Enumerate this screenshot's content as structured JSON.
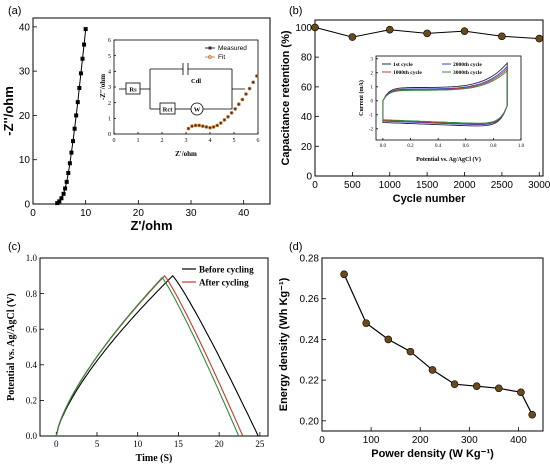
{
  "chart_data": [
    {
      "panel": "(a)",
      "type": "scatter",
      "xlabel": "Z'/ohm",
      "ylabel": "-Z''/ohm",
      "xlim": [
        0,
        45
      ],
      "ylim": [
        0,
        42
      ],
      "xticks": [
        0,
        10,
        20,
        30,
        40
      ],
      "yticks": [
        0,
        10,
        20,
        30,
        40
      ],
      "series": [
        {
          "color": "#000000",
          "x": [
            4.6,
            5.0,
            5.4,
            5.8,
            6.1,
            6.4,
            6.7,
            7.0,
            7.3,
            7.6,
            7.9,
            8.2,
            8.5,
            8.8,
            9.1,
            9.4,
            9.7,
            10.0
          ],
          "y": [
            0.2,
            0.6,
            1.3,
            2.3,
            3.5,
            5.0,
            7.0,
            9.2,
            11.6,
            14.2,
            17.0,
            20.0,
            23.0,
            26.2,
            29.5,
            32.8,
            36.0,
            39.5
          ]
        }
      ],
      "inset": {
        "xlabel": "Z'/ohm",
        "ylabel": "-Z''/ohm",
        "xlim": [
          0,
          6
        ],
        "ylim": [
          0,
          6
        ],
        "xticks": [
          0,
          1,
          2,
          3,
          4,
          5,
          6
        ],
        "yticks": [
          0,
          1,
          2,
          3,
          4,
          5,
          6
        ],
        "legend": [
          "Measured",
          "Fit"
        ],
        "circuit_labels": [
          "Rs",
          "Cdl",
          "Rct",
          "W"
        ],
        "series": [
          {
            "name": "Measured",
            "color": "#3a2a2a",
            "x": [
              3.1,
              3.25,
              3.4,
              3.55,
              3.7,
              3.85,
              4.0,
              4.15,
              4.3,
              4.45,
              4.6,
              4.75,
              4.9,
              5.05,
              5.2,
              5.35,
              5.5,
              5.65,
              5.8,
              5.95
            ],
            "y": [
              0.35,
              0.5,
              0.55,
              0.55,
              0.5,
              0.45,
              0.4,
              0.45,
              0.55,
              0.7,
              0.9,
              1.1,
              1.35,
              1.6,
              1.9,
              2.2,
              2.55,
              2.9,
              3.3,
              3.7
            ]
          },
          {
            "name": "Fit",
            "color": "#c8742a",
            "x": [
              3.1,
              3.25,
              3.4,
              3.55,
              3.7,
              3.85,
              4.0,
              4.15,
              4.3,
              4.45,
              4.6,
              4.75,
              4.9,
              5.05,
              5.2,
              5.35,
              5.5,
              5.65,
              5.8,
              5.95
            ],
            "y": [
              0.35,
              0.5,
              0.55,
              0.55,
              0.5,
              0.45,
              0.4,
              0.45,
              0.55,
              0.7,
              0.9,
              1.1,
              1.35,
              1.6,
              1.9,
              2.2,
              2.55,
              2.9,
              3.3,
              3.7
            ]
          }
        ]
      }
    },
    {
      "panel": "(b)",
      "type": "line",
      "xlabel": "Cycle number",
      "ylabel": "Capacitance retention (%)",
      "xlim": [
        0,
        3050
      ],
      "ylim": [
        0,
        105
      ],
      "xticks": [
        0,
        500,
        1000,
        1500,
        2000,
        2500,
        3000
      ],
      "yticks": [
        0,
        20,
        40,
        60,
        80,
        100
      ],
      "series": [
        {
          "color": "#6b4a1a",
          "x": [
            0,
            500,
            1000,
            1500,
            2000,
            2500,
            3000
          ],
          "y": [
            100,
            93.5,
            98.5,
            96,
            97.5,
            94,
            92.5
          ]
        }
      ],
      "inset": {
        "xlabel": "Potential vs. Ag/AgCl (V)",
        "ylabel": "Current (mA)",
        "xlim": [
          -0.05,
          1.0
        ],
        "ylim": [
          -2.8,
          3.2
        ],
        "xticks": [
          0.0,
          0.2,
          0.4,
          0.6,
          0.8,
          1.0
        ],
        "yticks": [
          -2,
          -1,
          0,
          1,
          2,
          3
        ],
        "legend": [
          "1st cycle",
          "2000th cycle",
          "1000th cycle",
          "3000th cycle"
        ],
        "series": [
          {
            "name": "1st cycle",
            "color": "#1f2a44",
            "peak": 2.7,
            "upper": 0.95,
            "lower": -1.55
          },
          {
            "name": "2000th cycle",
            "color": "#3a3ad0",
            "peak": 2.45,
            "upper": 0.85,
            "lower": -1.45
          },
          {
            "name": "1000th cycle",
            "color": "#c0392b",
            "peak": 2.3,
            "upper": 0.8,
            "lower": -1.4
          },
          {
            "name": "3000th cycle",
            "color": "#2e8b3e",
            "peak": 2.15,
            "upper": 0.75,
            "lower": -1.35
          }
        ]
      }
    },
    {
      "panel": "(c)",
      "type": "line",
      "xlabel": "Time (S)",
      "ylabel": "Potential vs. Ag/AgCl (V)",
      "xlim": [
        -2,
        26
      ],
      "ylim": [
        0,
        1.0
      ],
      "xticks": [
        0,
        5,
        10,
        15,
        20,
        25
      ],
      "yticks": [
        0.0,
        0.2,
        0.4,
        0.6,
        0.8,
        1.0
      ],
      "legend": [
        "Before cycling",
        "After cycling"
      ],
      "series": [
        {
          "name": "Before cycling",
          "color": "#000000",
          "t_peak": 14.3,
          "t_end": 24.8,
          "v_peak": 0.9
        },
        {
          "name": "After cycling",
          "color": "#c0392b",
          "t_peak": 13.3,
          "t_end": 22.9,
          "v_peak": 0.9
        },
        {
          "name": "",
          "color": "#2e8b3e",
          "t_peak": 13.0,
          "t_end": 22.4,
          "v_peak": 0.89
        }
      ]
    },
    {
      "panel": "(d)",
      "type": "line",
      "xlabel": "Power density (W Kg⁻¹)",
      "ylabel": "Energy density (Wh Kg⁻¹)",
      "xlim": [
        0,
        450
      ],
      "ylim": [
        0.195,
        0.28
      ],
      "xticks": [
        0,
        100,
        200,
        300,
        400
      ],
      "yticks": [
        0.2,
        0.22,
        0.24,
        0.26,
        0.28
      ],
      "series": [
        {
          "color": "#6b4a1a",
          "x": [
            45,
            90,
            135,
            180,
            225,
            270,
            315,
            360,
            405,
            428
          ],
          "y": [
            0.272,
            0.248,
            0.24,
            0.234,
            0.225,
            0.218,
            0.217,
            0.216,
            0.214,
            0.203
          ]
        }
      ]
    }
  ]
}
